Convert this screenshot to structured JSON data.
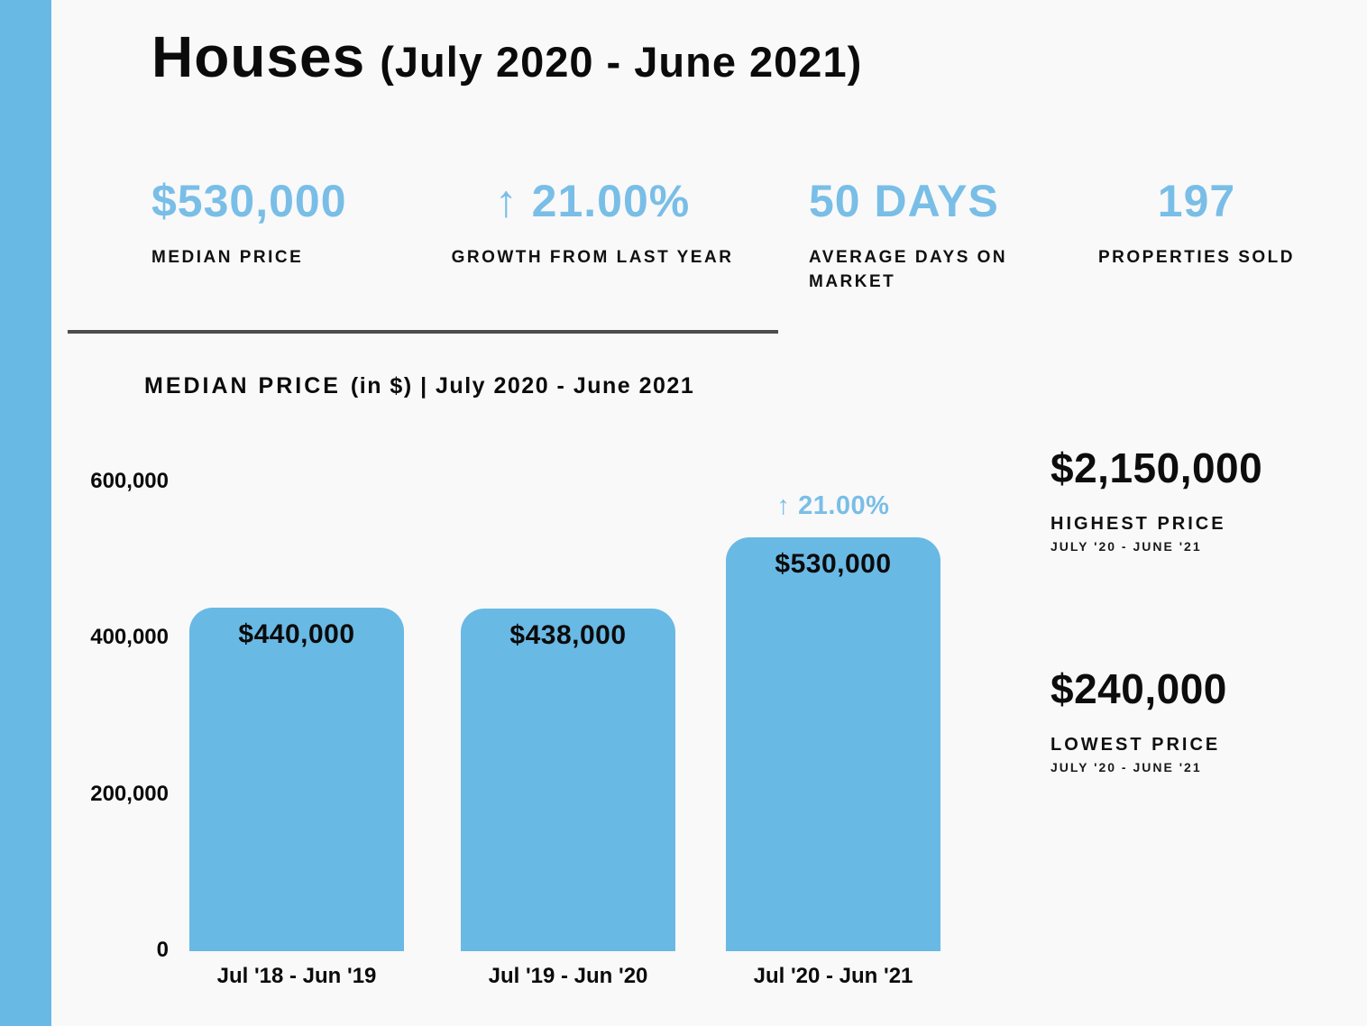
{
  "header": {
    "title": "Houses",
    "period": "(July 2020 - June 2021)"
  },
  "top_stats": [
    {
      "value": "$530,000",
      "label": "MEDIAN PRICE"
    },
    {
      "value": "↑ 21.00%",
      "label": "GROWTH FROM LAST YEAR"
    },
    {
      "value": "50 DAYS",
      "label": "AVERAGE DAYS ON MARKET"
    },
    {
      "value": "197",
      "label": "PROPERTIES SOLD"
    }
  ],
  "chart_header": {
    "title_emphasis": "MEDIAN PRICE",
    "title_rest": "(in $) | July 2020 - June 2021"
  },
  "chart_data": {
    "type": "bar",
    "title": "MEDIAN PRICE (in $) | July 2020 - June 2021",
    "categories": [
      "Jul '18 - Jun '19",
      "Jul '19 - Jun '20",
      "Jul '20 - Jun '21"
    ],
    "values": [
      440000,
      438000,
      530000
    ],
    "bar_value_labels": [
      "$440,000",
      "$438,000",
      "$530,000"
    ],
    "annotation": {
      "text": "↑ 21.00%",
      "bar_index": 2
    },
    "ylim": [
      0,
      600000
    ],
    "yticks": [
      {
        "value": 600000,
        "label": "600,000"
      },
      {
        "value": 400000,
        "label": "400,000"
      },
      {
        "value": 200000,
        "label": "200,000"
      },
      {
        "value": 0,
        "label": "0"
      }
    ],
    "grid": false,
    "legend": false,
    "bar_color": "#69b9e5"
  },
  "side_stats": [
    {
      "value": "$2,150,000",
      "label": "HIGHEST PRICE",
      "sublabel": "JULY '20 - JUNE '21"
    },
    {
      "value": "$240,000",
      "label": "LOWEST PRICE",
      "sublabel": "JULY '20 - JUNE '21"
    }
  ],
  "colors": {
    "accent_blue": "#69b9e5",
    "accent_text_blue": "#79bee7",
    "ink": "#0d0d0d",
    "divider": "#4d4d4d",
    "background": "#f9f9f9"
  }
}
